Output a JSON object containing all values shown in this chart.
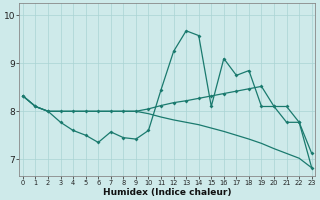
{
  "xlabel": "Humidex (Indice chaleur)",
  "bg_color": "#ceeaea",
  "line_color": "#1a7a6e",
  "grid_color": "#aad4d4",
  "xlim": [
    -0.3,
    23.3
  ],
  "ylim": [
    6.65,
    10.25
  ],
  "xticks": [
    0,
    1,
    2,
    3,
    4,
    5,
    6,
    7,
    8,
    9,
    10,
    11,
    12,
    13,
    14,
    15,
    16,
    17,
    18,
    19,
    20,
    21,
    22,
    23
  ],
  "yticks": [
    7,
    8,
    9,
    10
  ],
  "s1_x": [
    0,
    1,
    2,
    3,
    4,
    5,
    6,
    7,
    8,
    9,
    10,
    11,
    12,
    13,
    14,
    15,
    16,
    17,
    18,
    19,
    20,
    21,
    22,
    23
  ],
  "s1_y": [
    8.32,
    8.1,
    8.0,
    7.77,
    7.6,
    7.5,
    7.35,
    7.57,
    7.45,
    7.42,
    7.6,
    8.45,
    9.25,
    9.68,
    9.58,
    8.1,
    9.1,
    8.75,
    8.85,
    8.1,
    8.1,
    7.77,
    7.77,
    6.82
  ],
  "s2_x": [
    0,
    1,
    2,
    3,
    4,
    5,
    6,
    7,
    8,
    9,
    10,
    11,
    12,
    13,
    14,
    15,
    16,
    17,
    18,
    19,
    20,
    21,
    22,
    23
  ],
  "s2_y": [
    8.32,
    8.1,
    8.0,
    8.0,
    8.0,
    8.0,
    8.0,
    8.0,
    8.0,
    8.0,
    8.05,
    8.12,
    8.18,
    8.22,
    8.27,
    8.32,
    8.37,
    8.42,
    8.47,
    8.52,
    8.1,
    8.1,
    7.77,
    7.12
  ],
  "s3_x": [
    0,
    1,
    2,
    3,
    4,
    5,
    6,
    7,
    8,
    9,
    10,
    11,
    12,
    13,
    14,
    15,
    16,
    17,
    18,
    19,
    20,
    21,
    22,
    23
  ],
  "s3_y": [
    8.32,
    8.1,
    8.0,
    8.0,
    8.0,
    8.0,
    8.0,
    8.0,
    8.0,
    8.0,
    7.95,
    7.88,
    7.82,
    7.77,
    7.72,
    7.65,
    7.58,
    7.5,
    7.42,
    7.33,
    7.22,
    7.12,
    7.02,
    6.82
  ]
}
